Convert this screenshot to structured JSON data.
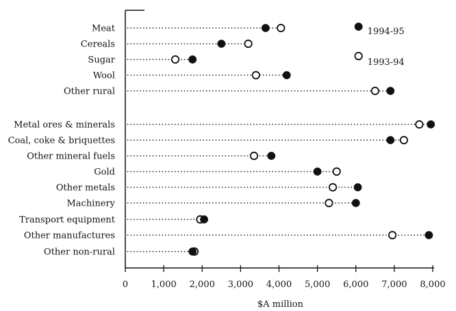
{
  "chart_data": {
    "type": "scatter",
    "subtype": "dot-plot",
    "xlabel": "$A million",
    "xlim": [
      0,
      8000
    ],
    "xticks": [
      0,
      1000,
      2000,
      3000,
      4000,
      5000,
      6000,
      7000,
      8000
    ],
    "xtick_labels": [
      "0",
      "1,000",
      "2,000",
      "3,000",
      "4,000",
      "5,000",
      "6,000",
      "7,000",
      "8,000"
    ],
    "grid": false,
    "legend_position": "top-right",
    "categories": [
      "Meat",
      "Cereals",
      "Sugar",
      "Wool",
      "Other rural",
      "Metal ores & minerals",
      "Coal, coke & briquettes",
      "Other mineral fuels",
      "Gold",
      "Other metals",
      "Machinery",
      "Transport equipment",
      "Other manufactures",
      "Other non-rural"
    ],
    "series": [
      {
        "name": "1994-95",
        "marker": "filled",
        "color": "#111111",
        "values": [
          3650,
          2500,
          1750,
          4200,
          6900,
          7950,
          6900,
          3800,
          5000,
          6050,
          6000,
          2050,
          7900,
          1750
        ]
      },
      {
        "name": "1993-94",
        "marker": "open",
        "color": "#111111",
        "values": [
          4050,
          3200,
          1300,
          3400,
          6500,
          7650,
          7250,
          3350,
          5500,
          5400,
          5300,
          1950,
          6950,
          1800
        ]
      }
    ]
  }
}
